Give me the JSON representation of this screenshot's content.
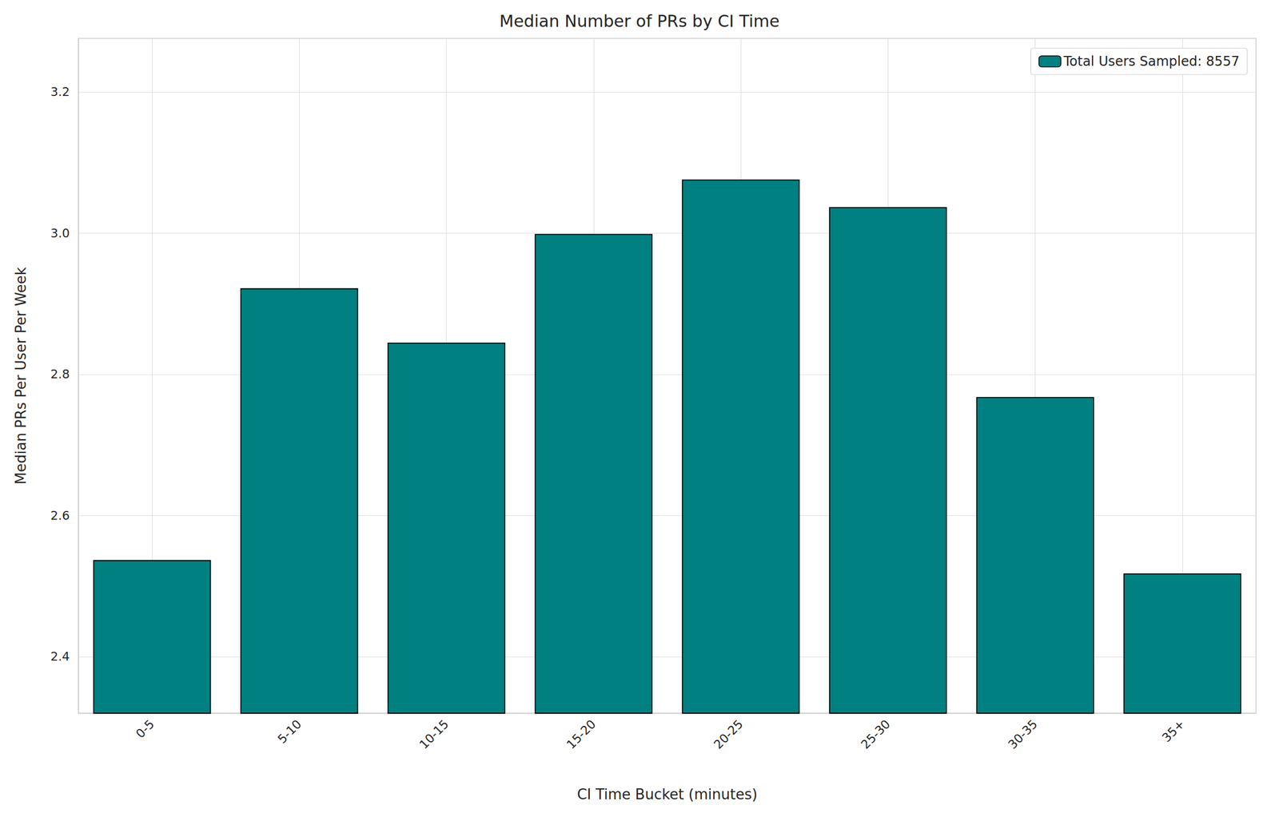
{
  "chart_data": {
    "type": "bar",
    "title": "Median Number of PRs by CI Time",
    "x_label": "CI Time Bucket (minutes)",
    "y_label": "Median PRs Per User Per Week",
    "categories": [
      "0-5",
      "5-10",
      "10-15",
      "15-20",
      "20-25",
      "25-30",
      "30-35",
      "35+"
    ],
    "series": [
      {
        "name": "Total Users Sampled: 8557",
        "color": "#008080",
        "values": [
          2.537,
          2.922,
          2.845,
          2.999,
          3.076,
          3.037,
          2.768,
          2.518
        ]
      }
    ],
    "ylim": [
      2.32,
      3.276
    ],
    "yticks": [
      2.4,
      2.6,
      2.8,
      {
        "value": 3,
        "label": "3.0"
      },
      3.2
    ],
    "grid": true,
    "legend": "upper right"
  }
}
